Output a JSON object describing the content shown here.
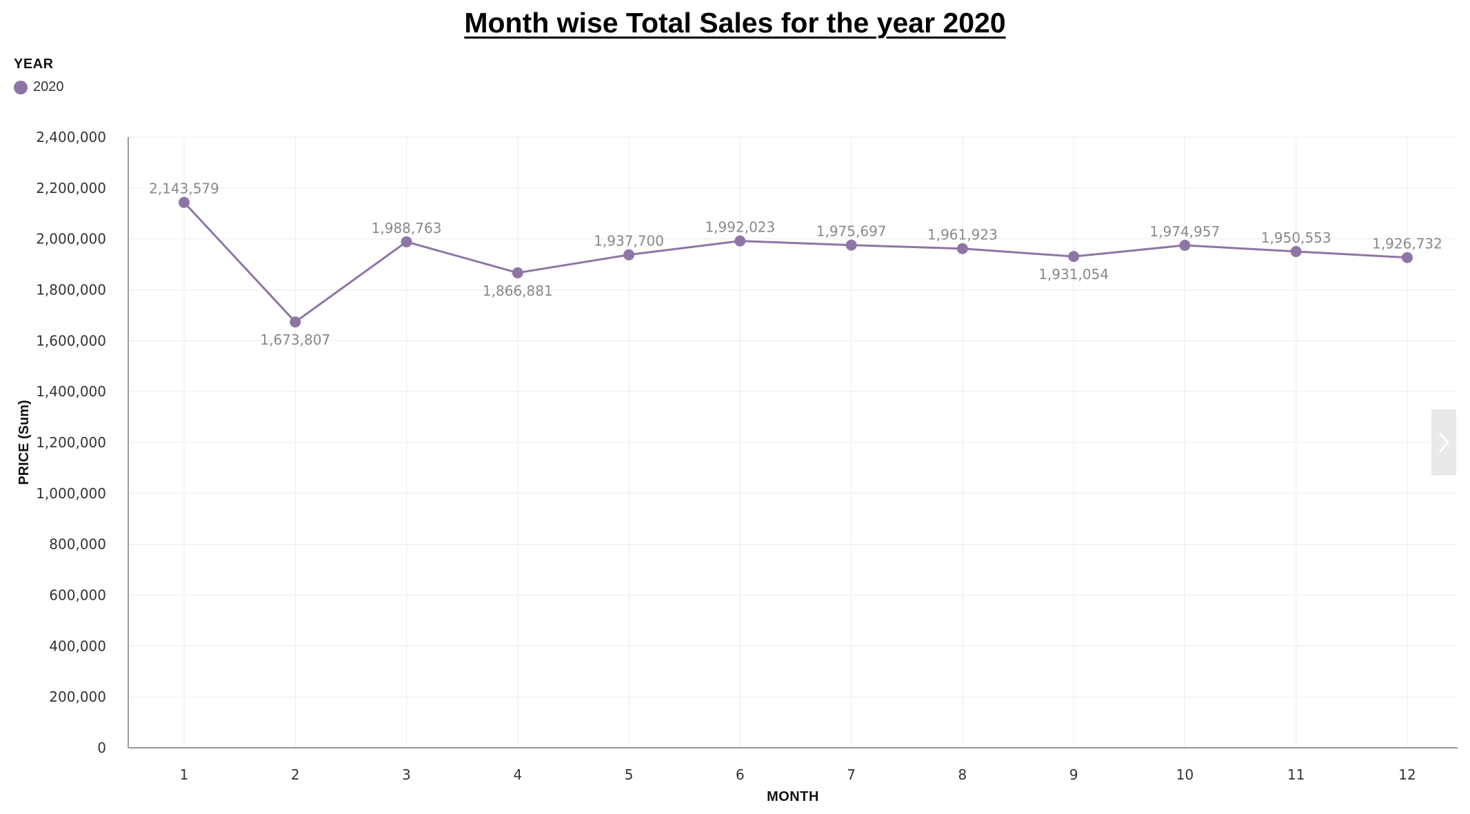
{
  "chart_data": {
    "type": "line",
    "title": "Month wise Total Sales for the year 2020",
    "xlabel": "MONTH",
    "ylabel": "PRICE (Sum)",
    "legend_title": "YEAR",
    "legend_position": "top-left",
    "grid": true,
    "ylim": [
      0,
      2400000
    ],
    "y_ticks": [
      "0",
      "200,000",
      "400,000",
      "600,000",
      "800,000",
      "1,000,000",
      "1,200,000",
      "1,400,000",
      "1,600,000",
      "1,800,000",
      "2,000,000",
      "2,200,000",
      "2,400,000"
    ],
    "categories": [
      "1",
      "2",
      "3",
      "4",
      "5",
      "6",
      "7",
      "8",
      "9",
      "10",
      "11",
      "12"
    ],
    "series": [
      {
        "name": "2020",
        "color": "#8e75a6",
        "values": [
          2143579,
          1673807,
          1988763,
          1866881,
          1937700,
          1992023,
          1975697,
          1961923,
          1931054,
          1974957,
          1950553,
          1926732
        ],
        "labels": [
          "2,143,579",
          "1,673,807",
          "1,988,763",
          "1,866,881",
          "1,937,700",
          "1,992,023",
          "1,975,697",
          "1,961,923",
          "1,931,054",
          "1,974,957",
          "1,950,553",
          "1,926,732"
        ],
        "label_positions": [
          "above",
          "below",
          "above",
          "below",
          "above",
          "above",
          "above",
          "above",
          "below",
          "above",
          "above",
          "above"
        ]
      }
    ]
  },
  "pager": {
    "icon": "chevron-right-icon"
  }
}
